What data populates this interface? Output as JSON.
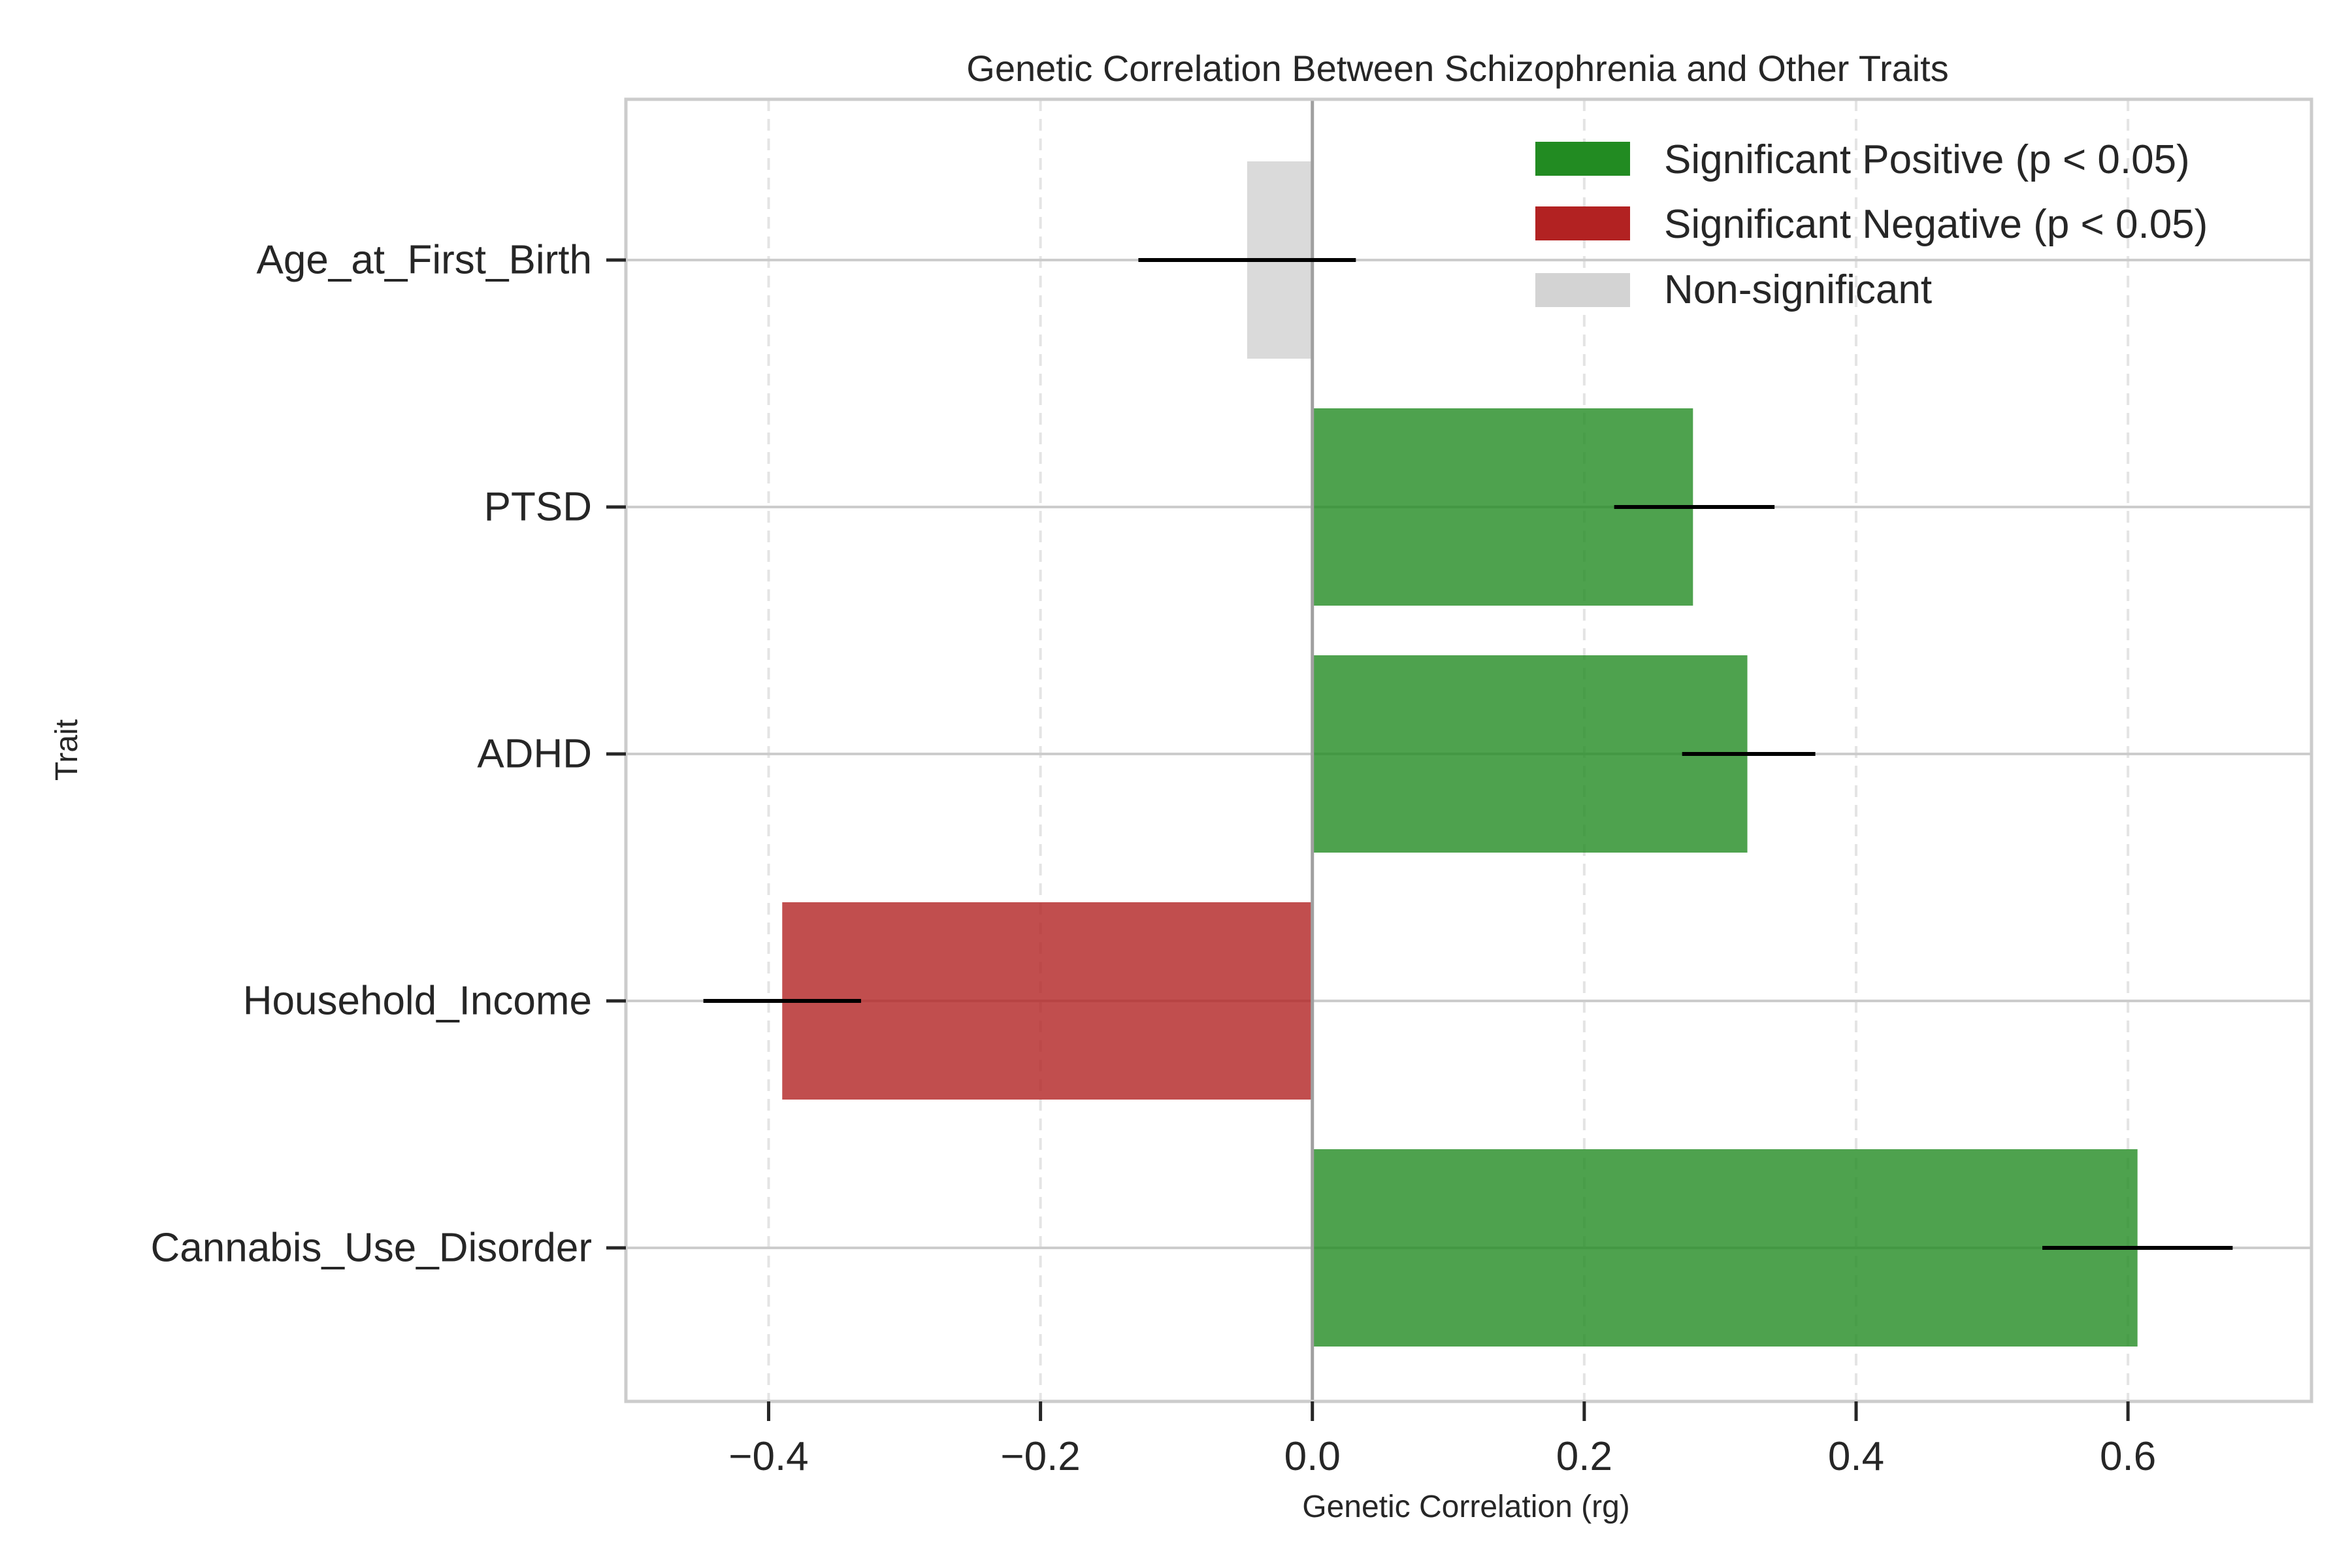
{
  "chart_data": {
    "type": "bar",
    "orientation": "horizontal",
    "title": "Genetic Correlation Between Schizophrenia and Other Traits",
    "xlabel": "Genetic Correlation (rg)",
    "ylabel": "Trait",
    "xlim": [
      -0.505,
      0.735
    ],
    "xticks": [
      -0.4,
      -0.2,
      0.0,
      0.2,
      0.4,
      0.6
    ],
    "xtick_labels": [
      "−0.4",
      "−0.2",
      "0.0",
      "0.2",
      "0.4",
      "0.6"
    ],
    "categories": [
      "Age_at_First_Birth",
      "PTSD",
      "ADHD",
      "Household_Income",
      "Cannabis_Use_Disorder"
    ],
    "values": [
      -0.048,
      0.28,
      0.32,
      -0.39,
      0.607
    ],
    "error_low": [
      -0.128,
      0.222,
      0.272,
      -0.448,
      0.537
    ],
    "error_high": [
      0.032,
      0.34,
      0.37,
      -0.332,
      0.677
    ],
    "significance": [
      "non-significant",
      "positive",
      "positive",
      "negative",
      "positive"
    ],
    "colors": {
      "positive": "#228b22",
      "negative": "#b22222",
      "non-significant": "#d3d3d3",
      "error_bar": "#000000",
      "zero_line": "#a0a0a0",
      "grid": "#cccccc",
      "frame": "#cccccc"
    },
    "legend": {
      "position": "top-right",
      "entries": [
        {
          "key": "positive",
          "label": "Significant Positive (p < 0.05)"
        },
        {
          "key": "negative",
          "label": "Significant Negative (p < 0.05)"
        },
        {
          "key": "non-significant",
          "label": "Non-significant"
        }
      ]
    },
    "grid": {
      "x": "dashed",
      "y": "solid"
    }
  }
}
